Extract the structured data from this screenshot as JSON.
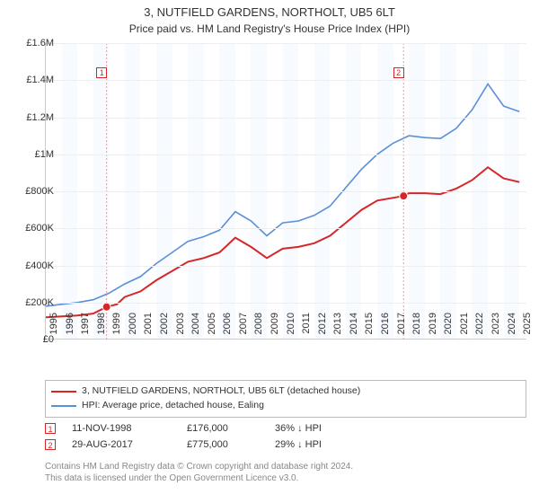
{
  "title": "3, NUTFIELD GARDENS, NORTHOLT, UB5 6LT",
  "subtitle": "Price paid vs. HM Land Registry's House Price Index (HPI)",
  "chart": {
    "type": "line",
    "background_color": "#ffffff",
    "band_color": "#f7fbff",
    "grid_color": "#eeeeee",
    "axis_color": "#cccccc",
    "ylim": [
      0,
      1600000
    ],
    "ytick_step": 200000,
    "yticks_labels": [
      "£0",
      "£200K",
      "£400K",
      "£600K",
      "£800K",
      "£1M",
      "£1.2M",
      "£1.4M",
      "£1.6M"
    ],
    "xlim": [
      1995,
      2025.5
    ],
    "xticks": [
      1995,
      1996,
      1997,
      1998,
      1999,
      2000,
      2001,
      2002,
      2003,
      2004,
      2005,
      2006,
      2007,
      2008,
      2009,
      2010,
      2011,
      2012,
      2013,
      2014,
      2015,
      2016,
      2017,
      2018,
      2019,
      2020,
      2021,
      2022,
      2023,
      2024,
      2025
    ],
    "label_fontsize": 11,
    "series": [
      {
        "name": "3, NUTFIELD GARDENS, NORTHOLT, UB5 6LT (detached house)",
        "color": "#d62728",
        "line_width": 2,
        "data": [
          [
            1995,
            120000
          ],
          [
            1996,
            125000
          ],
          [
            1997,
            130000
          ],
          [
            1998,
            140000
          ],
          [
            1998.85,
            176000
          ],
          [
            1999.5,
            190000
          ],
          [
            2000,
            230000
          ],
          [
            2001,
            260000
          ],
          [
            2002,
            320000
          ],
          [
            2003,
            370000
          ],
          [
            2004,
            420000
          ],
          [
            2005,
            440000
          ],
          [
            2006,
            470000
          ],
          [
            2007,
            550000
          ],
          [
            2008,
            500000
          ],
          [
            2009,
            440000
          ],
          [
            2010,
            490000
          ],
          [
            2011,
            500000
          ],
          [
            2012,
            520000
          ],
          [
            2013,
            560000
          ],
          [
            2014,
            630000
          ],
          [
            2015,
            700000
          ],
          [
            2016,
            750000
          ],
          [
            2017.66,
            775000
          ],
          [
            2018,
            790000
          ],
          [
            2019,
            790000
          ],
          [
            2020,
            785000
          ],
          [
            2021,
            815000
          ],
          [
            2022,
            860000
          ],
          [
            2023,
            930000
          ],
          [
            2024,
            870000
          ],
          [
            2025,
            850000
          ]
        ]
      },
      {
        "name": "HPI: Average price, detached house, Ealing",
        "color": "#5b8fd6",
        "line_width": 1.6,
        "data": [
          [
            1995,
            180000
          ],
          [
            1996,
            190000
          ],
          [
            1997,
            200000
          ],
          [
            1998,
            215000
          ],
          [
            1999,
            250000
          ],
          [
            2000,
            300000
          ],
          [
            2001,
            340000
          ],
          [
            2002,
            410000
          ],
          [
            2003,
            470000
          ],
          [
            2004,
            530000
          ],
          [
            2005,
            555000
          ],
          [
            2006,
            590000
          ],
          [
            2007,
            690000
          ],
          [
            2008,
            640000
          ],
          [
            2009,
            560000
          ],
          [
            2010,
            630000
          ],
          [
            2011,
            640000
          ],
          [
            2012,
            670000
          ],
          [
            2013,
            720000
          ],
          [
            2014,
            820000
          ],
          [
            2015,
            920000
          ],
          [
            2016,
            1000000
          ],
          [
            2017,
            1060000
          ],
          [
            2018,
            1100000
          ],
          [
            2019,
            1090000
          ],
          [
            2020,
            1085000
          ],
          [
            2021,
            1140000
          ],
          [
            2022,
            1240000
          ],
          [
            2023,
            1380000
          ],
          [
            2024,
            1260000
          ],
          [
            2025,
            1230000
          ]
        ]
      }
    ],
    "markers": [
      {
        "index": 1,
        "x": 1998.85,
        "y": 176000,
        "color": "#d62728",
        "box_x": 1998.6,
        "box_y": 1470000
      },
      {
        "index": 2,
        "x": 2017.66,
        "y": 775000,
        "color": "#d62728",
        "box_x": 2017.4,
        "box_y": 1470000
      }
    ]
  },
  "legend": {
    "items": [
      {
        "color": "#d62728",
        "label": "3, NUTFIELD GARDENS, NORTHOLT, UB5 6LT (detached house)"
      },
      {
        "color": "#5b8fd6",
        "label": "HPI: Average price, detached house, Ealing"
      }
    ]
  },
  "datapoints": [
    {
      "index": 1,
      "color": "#d62728",
      "date": "11-NOV-1998",
      "price": "£176,000",
      "delta": "36% ↓ HPI"
    },
    {
      "index": 2,
      "color": "#d62728",
      "date": "29-AUG-2017",
      "price": "£775,000",
      "delta": "29% ↓ HPI"
    }
  ],
  "copyright": {
    "line1": "Contains HM Land Registry data © Crown copyright and database right 2024.",
    "line2": "This data is licensed under the Open Government Licence v3.0."
  }
}
